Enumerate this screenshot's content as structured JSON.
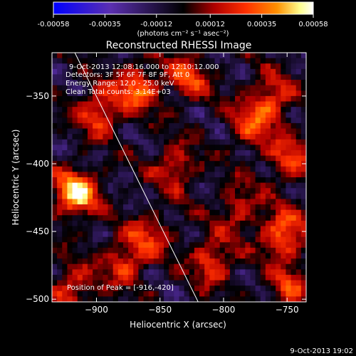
{
  "footer_timestamp": "9-Oct-2013 19:02",
  "colorbar": {
    "tick_labels": [
      "-0.00058",
      "-0.00035",
      "-0.00012",
      "0.00012",
      "0.00035",
      "0.00058"
    ],
    "unit_label": "(photons cm⁻² s⁻¹ asec⁻²)"
  },
  "chart_data": {
    "type": "heatmap",
    "title": "Reconstructed RHESSI Image",
    "xlabel": "Heliocentric X (arcsec)",
    "ylabel": "Heliocentric Y (arcsec)",
    "xlim": [
      -935,
      -735
    ],
    "ylim": [
      -502,
      -318
    ],
    "x_ticks": [
      -900,
      -850,
      -800,
      -750
    ],
    "y_ticks": [
      -350,
      -400,
      -450,
      -500
    ],
    "color_range": [
      -0.00058,
      0.00058
    ],
    "colormap": [
      "#0000ff",
      "#5b2fb0",
      "#000000",
      "#b00000",
      "#ff3000",
      "#ff9000",
      "#ffff90",
      "#ffffff"
    ],
    "annotations": [
      "9-Oct-2013 12:08:16.000 to 12:10:12.000",
      "Detectors: 3F 5F 6F 7F 8F 9F, Att 0",
      "Energy Range: 12.0 - 25.0 keV",
      "Clean    Total counts: 3.14E+03"
    ],
    "peak_label": "Position of Peak = [-916,-420]",
    "peak_position": [
      -916,
      -420
    ],
    "limb_line": [
      [
        -917,
        -318
      ],
      [
        -820,
        -502
      ]
    ],
    "hotspots": [
      {
        "x": -918,
        "y": -420,
        "amp": 1.0
      },
      {
        "x": -870,
        "y": -342,
        "amp": 0.7
      },
      {
        "x": -830,
        "y": -335,
        "amp": 0.55
      },
      {
        "x": -765,
        "y": -350,
        "amp": 0.6
      },
      {
        "x": -750,
        "y": -395,
        "amp": 0.55
      },
      {
        "x": -755,
        "y": -450,
        "amp": 0.75
      },
      {
        "x": -752,
        "y": -490,
        "amp": 0.5
      },
      {
        "x": -810,
        "y": -470,
        "amp": 0.6
      },
      {
        "x": -790,
        "y": -430,
        "amp": 0.45
      },
      {
        "x": -880,
        "y": -470,
        "amp": 0.55
      },
      {
        "x": -900,
        "y": -360,
        "amp": 0.6
      },
      {
        "x": -840,
        "y": -400,
        "amp": 0.5
      },
      {
        "x": -780,
        "y": -370,
        "amp": 0.5
      },
      {
        "x": -860,
        "y": -450,
        "amp": 0.45
      },
      {
        "x": -920,
        "y": -490,
        "amp": 0.55
      }
    ]
  }
}
